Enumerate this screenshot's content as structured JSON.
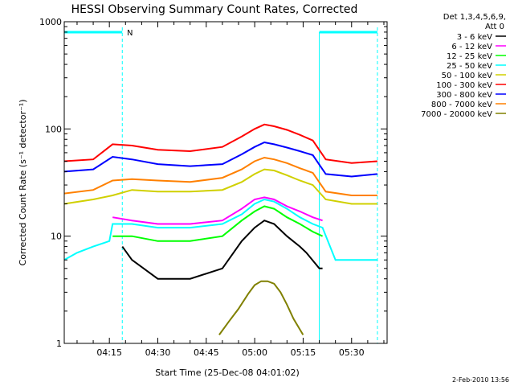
{
  "chart_data": {
    "type": "line",
    "title": "HESSI Observing Summary Count Rates, Corrected",
    "xlabel": "Start Time (25-Dec-08 04:01:02)",
    "ylabel": "Corrected Count Rate (s⁻¹ detector⁻¹)",
    "x_ticks": [
      "04:15",
      "04:30",
      "04:45",
      "05:00",
      "05:15",
      "05:30"
    ],
    "x_tick_minutes": [
      15,
      30,
      45,
      60,
      75,
      90
    ],
    "xlim_minutes": [
      1.03,
      101
    ],
    "y_ticks": [
      "1",
      "10",
      "100",
      "1000"
    ],
    "y_tick_values": [
      1,
      10,
      100,
      1000
    ],
    "ylim": [
      1,
      1000
    ],
    "yscale": "log",
    "legend_header": [
      "Det 1,3,4,5,6,9,",
      "Att 0"
    ],
    "legend_position": "top-right",
    "night_marker_label": "N",
    "sunlit_windows_minutes": [
      [
        1.03,
        19
      ],
      [
        80,
        98
      ]
    ],
    "series": [
      {
        "name": "3 - 6 keV",
        "color": "#000000",
        "x": [
          19,
          22,
          30,
          40,
          50,
          56,
          60,
          63,
          66,
          70,
          74,
          76,
          80,
          81
        ],
        "y": [
          8,
          6,
          4,
          4,
          5,
          9,
          12,
          14,
          13,
          10,
          8,
          7,
          5,
          5
        ]
      },
      {
        "name": "6 - 12 keV",
        "color": "#ff00ff",
        "x": [
          16,
          22,
          30,
          40,
          50,
          56,
          60,
          63,
          66,
          70,
          74,
          78,
          81
        ],
        "y": [
          15,
          14,
          13,
          13,
          14,
          18,
          22,
          23,
          22,
          19,
          17,
          15,
          14
        ]
      },
      {
        "name": "12 - 25 keV",
        "color": "#00ff00",
        "x": [
          16,
          22,
          30,
          40,
          50,
          56,
          60,
          63,
          66,
          70,
          74,
          78,
          81
        ],
        "y": [
          10,
          10,
          9,
          9,
          10,
          14,
          17,
          19,
          18,
          15,
          13,
          11,
          10
        ]
      },
      {
        "name": "25 - 50 keV",
        "color": "#00ffff",
        "x": [
          1,
          5,
          10,
          15,
          16,
          22,
          30,
          40,
          50,
          56,
          60,
          63,
          66,
          70,
          74,
          78,
          81,
          85,
          90,
          98
        ],
        "y": [
          6,
          7,
          8,
          9,
          13,
          13,
          12,
          12,
          13,
          16,
          20,
          22,
          21,
          18,
          15,
          13,
          12,
          6,
          6,
          6
        ]
      },
      {
        "name": "50 - 100 keV",
        "color": "#d0d000",
        "x": [
          1,
          10,
          16,
          22,
          30,
          40,
          50,
          56,
          60,
          63,
          66,
          70,
          74,
          78,
          82,
          90,
          98
        ],
        "y": [
          20,
          22,
          24,
          27,
          26,
          26,
          27,
          32,
          38,
          42,
          41,
          37,
          33,
          30,
          22,
          20,
          20
        ]
      },
      {
        "name": "100 - 300 keV",
        "color": "#ff0000",
        "x": [
          1,
          10,
          16,
          22,
          30,
          40,
          50,
          56,
          60,
          63,
          66,
          70,
          74,
          78,
          82,
          90,
          98
        ],
        "y": [
          50,
          52,
          72,
          70,
          64,
          62,
          68,
          85,
          100,
          110,
          106,
          98,
          88,
          78,
          52,
          48,
          50
        ]
      },
      {
        "name": "300 - 800 keV",
        "color": "#0000ff",
        "x": [
          1,
          10,
          16,
          22,
          30,
          40,
          50,
          56,
          60,
          63,
          66,
          70,
          74,
          78,
          82,
          90,
          98
        ],
        "y": [
          40,
          42,
          55,
          52,
          47,
          45,
          47,
          58,
          68,
          75,
          72,
          67,
          62,
          57,
          38,
          36,
          38
        ]
      },
      {
        "name": "800 - 7000 keV",
        "color": "#ff8000",
        "x": [
          1,
          10,
          16,
          22,
          30,
          40,
          50,
          56,
          60,
          63,
          66,
          70,
          74,
          78,
          82,
          90,
          98
        ],
        "y": [
          25,
          27,
          33,
          34,
          33,
          32,
          35,
          42,
          50,
          54,
          52,
          48,
          43,
          39,
          26,
          24,
          24
        ]
      },
      {
        "name": "7000 - 20000 keV",
        "color": "#808000",
        "x": [
          49,
          52,
          55,
          58,
          60,
          62,
          64,
          66,
          68,
          70,
          72,
          75
        ],
        "y": [
          1.2,
          1.6,
          2.1,
          2.9,
          3.5,
          3.8,
          3.8,
          3.6,
          3.0,
          2.3,
          1.7,
          1.2
        ]
      }
    ],
    "timestamp": "2-Feb-2010 13:56"
  }
}
